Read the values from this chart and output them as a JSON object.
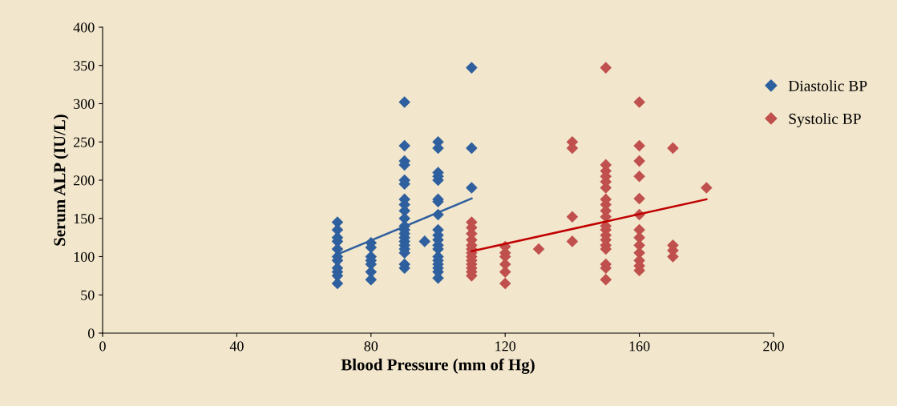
{
  "chart_data": {
    "type": "scatter",
    "xlabel": "Blood Pressure (mm of Hg)",
    "ylabel": "Serum ALP (IU/L)",
    "xlim": [
      0,
      200
    ],
    "xticks": [
      0,
      40,
      80,
      120,
      160,
      200
    ],
    "ylim": [
      0,
      400
    ],
    "yticks": [
      0,
      50,
      100,
      150,
      200,
      250,
      300,
      350,
      400
    ],
    "grid": false,
    "legend": "right",
    "marker": "diamond",
    "series": [
      {
        "name": "Diastolic BP",
        "color": "#2e5f9e",
        "x": [
          70,
          70,
          70,
          70,
          70,
          70,
          70,
          70,
          70,
          70,
          70,
          80,
          80,
          80,
          80,
          80,
          80,
          80,
          90,
          90,
          90,
          90,
          90,
          90,
          90,
          90,
          90,
          90,
          90,
          90,
          90,
          90,
          90,
          90,
          90,
          90,
          90,
          90,
          96,
          100,
          100,
          100,
          100,
          100,
          100,
          100,
          100,
          100,
          100,
          100,
          100,
          100,
          100,
          100,
          100,
          100,
          100,
          100,
          110,
          110,
          110
        ],
        "values": [
          145,
          135,
          125,
          120,
          110,
          100,
          95,
          85,
          80,
          75,
          65,
          118,
          112,
          100,
          95,
          90,
          80,
          70,
          302,
          245,
          225,
          220,
          200,
          195,
          175,
          168,
          160,
          150,
          140,
          135,
          130,
          125,
          120,
          115,
          110,
          105,
          90,
          85,
          120,
          250,
          242,
          210,
          205,
          200,
          175,
          172,
          155,
          135,
          128,
          122,
          115,
          110,
          100,
          95,
          90,
          85,
          80,
          72,
          347,
          242,
          190
        ]
      },
      {
        "name": "Systolic BP",
        "color": "#c0504d",
        "x": [
          110,
          110,
          110,
          110,
          110,
          110,
          110,
          110,
          110,
          110,
          110,
          110,
          110,
          120,
          120,
          120,
          120,
          120,
          120,
          130,
          140,
          140,
          140,
          140,
          150,
          150,
          150,
          150,
          150,
          150,
          150,
          150,
          150,
          150,
          150,
          150,
          150,
          150,
          150,
          150,
          150,
          150,
          150,
          160,
          160,
          160,
          160,
          160,
          160,
          160,
          160,
          160,
          160,
          160,
          160,
          160,
          170,
          170,
          170,
          170,
          180
        ],
        "values": [
          145,
          138,
          130,
          122,
          115,
          110,
          105,
          100,
          95,
          90,
          85,
          80,
          75,
          113,
          105,
          100,
          90,
          80,
          65,
          110,
          250,
          242,
          152,
          120,
          347,
          220,
          212,
          205,
          198,
          190,
          175,
          168,
          160,
          152,
          140,
          135,
          128,
          122,
          115,
          110,
          90,
          85,
          70,
          302,
          245,
          225,
          205,
          176,
          155,
          135,
          125,
          115,
          105,
          95,
          88,
          82,
          242,
          115,
          108,
          100,
          190
        ]
      },
      {
        "type": "line",
        "marker": "none",
        "color": "#2e5f9e",
        "x": [
          70,
          110
        ],
        "values": [
          103,
          176
        ]
      },
      {
        "type": "line",
        "marker": "none",
        "color": "#c00000",
        "x": [
          110,
          180
        ],
        "values": [
          107,
          175
        ]
      }
    ]
  }
}
